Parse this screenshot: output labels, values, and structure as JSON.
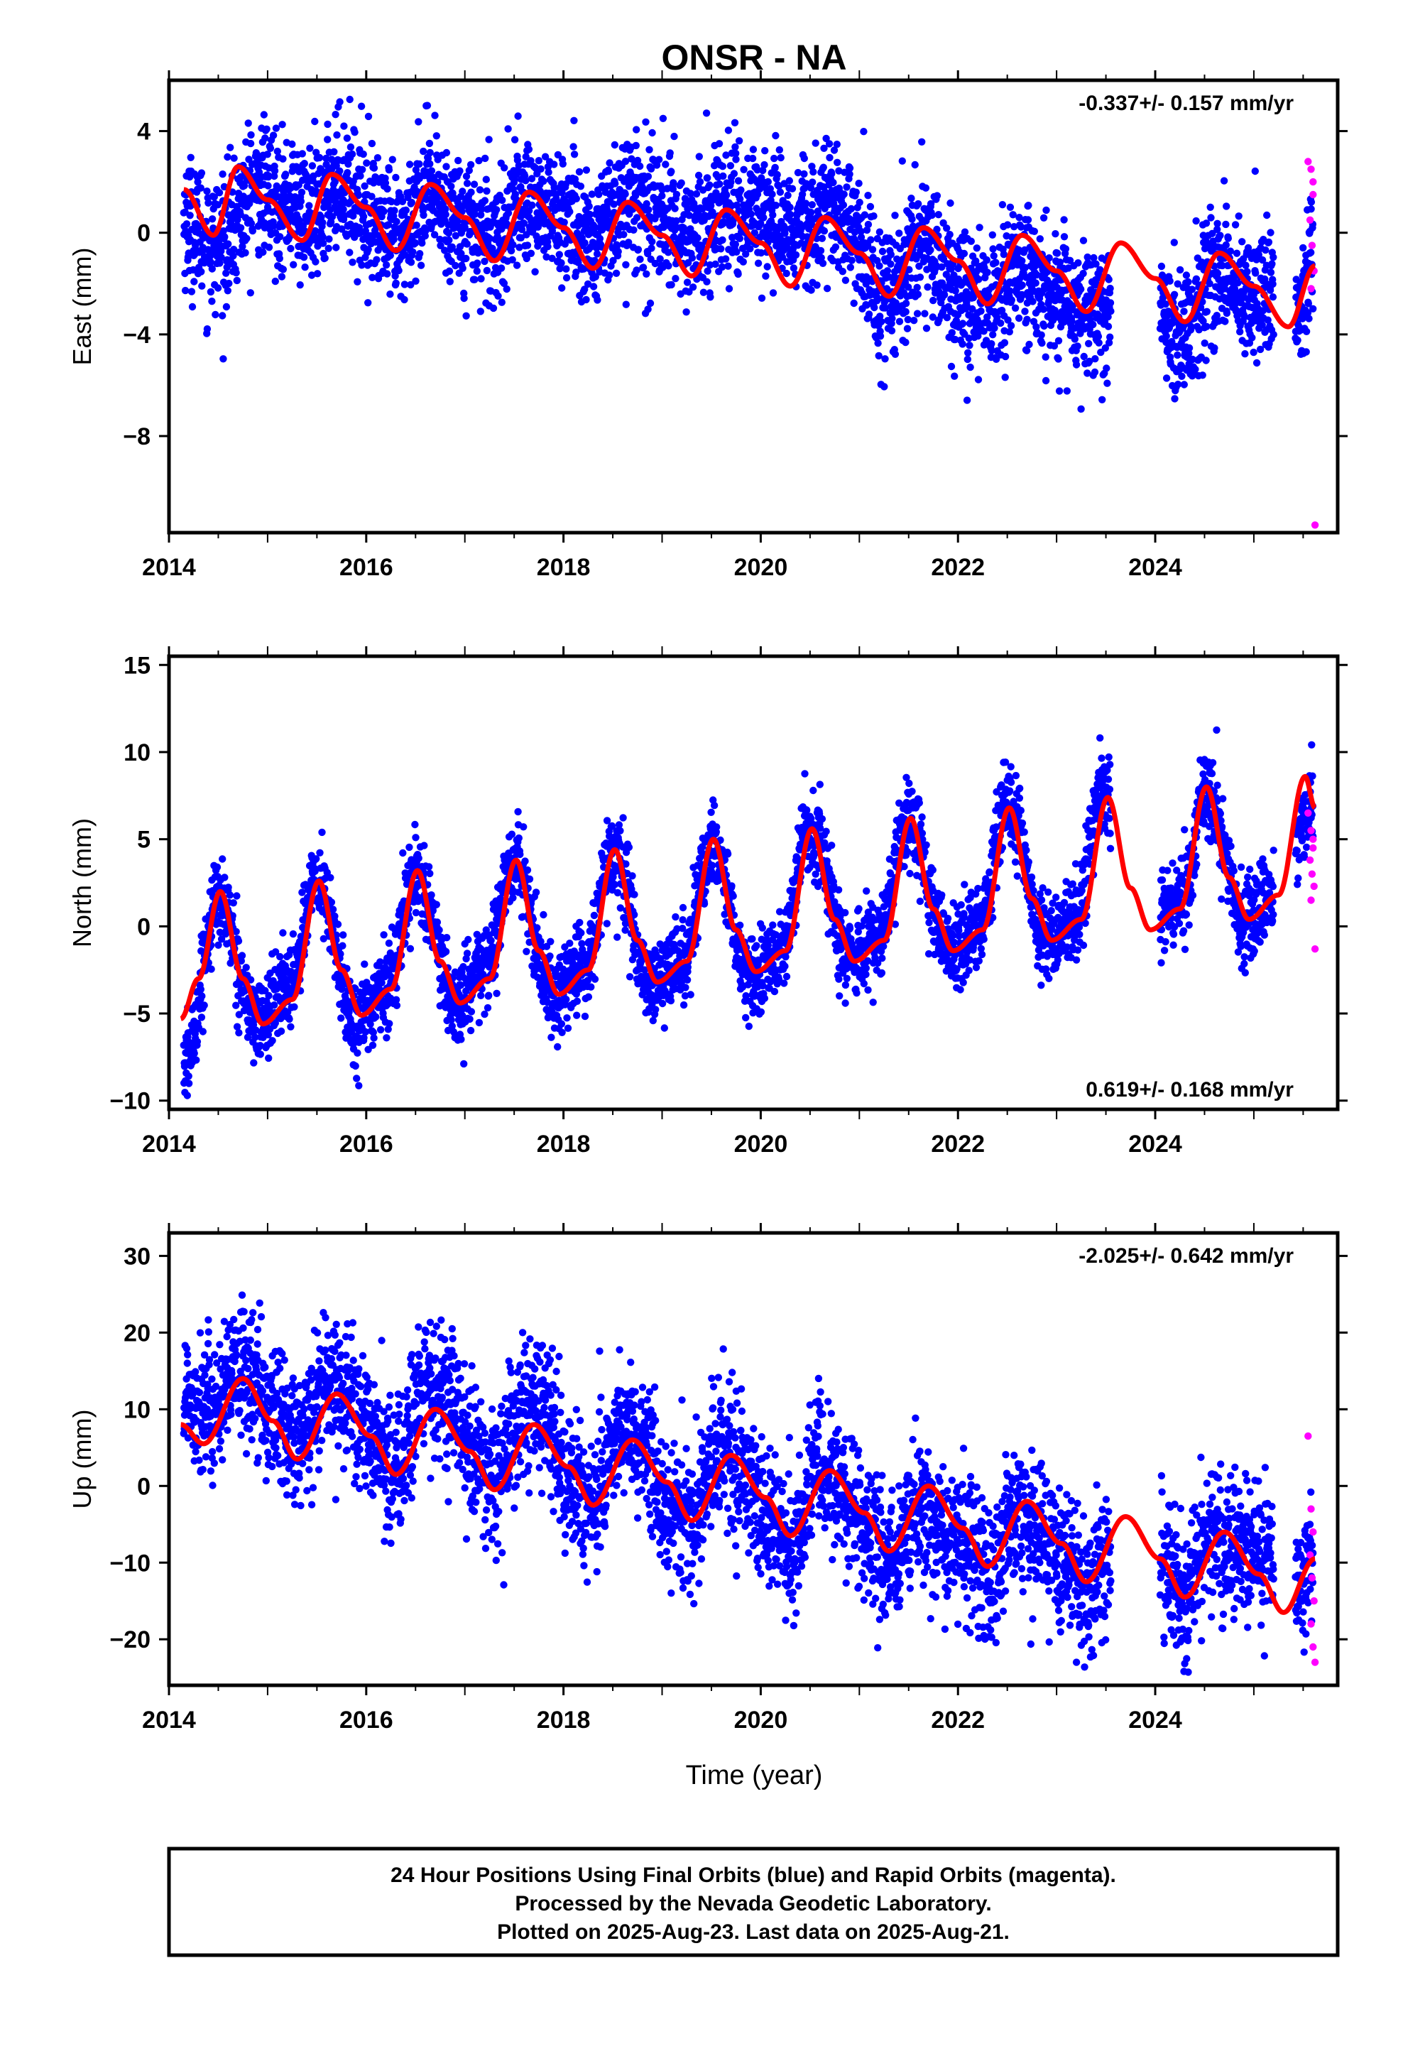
{
  "chart_data": [
    {
      "type": "scatter",
      "panel": "east",
      "title": "ONSR - NA",
      "xlabel": "",
      "ylabel": "East (mm)",
      "rate_text": "-0.337+/- 0.157 mm/yr",
      "xlim": [
        2014.0,
        2025.85
      ],
      "ylim": [
        -11.8,
        6.0
      ],
      "x_ticks": [
        2014,
        2016,
        2018,
        2020,
        2022,
        2024
      ],
      "y_ticks": [
        4,
        0,
        -4,
        -8
      ],
      "series": [
        {
          "name": "Final Orbits",
          "color": "#0000ff",
          "kind": "points",
          "spread": 1.3,
          "x": [
            2014.15,
            2014.5,
            2014.9,
            2015.2,
            2015.5,
            2015.7,
            2016.0,
            2016.3,
            2016.6,
            2017.0,
            2017.3,
            2017.6,
            2018.0,
            2018.3,
            2018.6,
            2019.0,
            2019.3,
            2019.6,
            2020.0,
            2020.3,
            2020.6,
            2020.9,
            2021.25,
            2021.6,
            2022.0,
            2022.3,
            2022.6,
            2022.9,
            2023.3,
            2023.45,
            2024.1,
            2024.3,
            2024.6,
            2024.9,
            2025.15,
            2025.45,
            2025.6
          ],
          "y": [
            0.5,
            -0.5,
            1.8,
            1.2,
            0.5,
            2.2,
            1.0,
            -0.5,
            1.5,
            0.5,
            -0.2,
            1.3,
            0.6,
            -0.5,
            1.3,
            0.7,
            -0.3,
            0.9,
            1.0,
            0.3,
            0.8,
            0.5,
            -2.8,
            -0.3,
            -2.2,
            -3.0,
            -1.2,
            -2.5,
            -3.0,
            -2.8,
            -3.5,
            -4.0,
            -1.5,
            -2.5,
            -2.5,
            -3.5,
            -1.0
          ]
        },
        {
          "name": "Rapid Orbits",
          "color": "#ff00ff",
          "kind": "points",
          "x": [
            2025.55,
            2025.58,
            2025.6,
            2025.57,
            2025.59,
            2025.61,
            2025.58,
            2025.6,
            2025.62
          ],
          "y": [
            2.8,
            2.5,
            1.5,
            0.5,
            -0.5,
            -1.5,
            -2.2,
            2.0,
            -11.5
          ]
        },
        {
          "name": "Model",
          "color": "#ff0000",
          "kind": "curve",
          "x": [
            2014.15,
            2014.45,
            2014.7,
            2015.0,
            2015.35,
            2015.65,
            2016.0,
            2016.3,
            2016.65,
            2017.0,
            2017.3,
            2017.65,
            2018.0,
            2018.3,
            2018.65,
            2019.0,
            2019.3,
            2019.65,
            2020.0,
            2020.3,
            2020.65,
            2021.0,
            2021.3,
            2021.65,
            2022.0,
            2022.3,
            2022.65,
            2023.0,
            2023.3,
            2023.65,
            2024.0,
            2024.3,
            2024.65,
            2025.0,
            2025.35,
            2025.62
          ],
          "y": [
            1.7,
            -0.1,
            2.6,
            1.3,
            -0.3,
            2.3,
            1.0,
            -0.7,
            1.9,
            0.6,
            -1.1,
            1.6,
            0.2,
            -1.4,
            1.2,
            -0.1,
            -1.7,
            0.9,
            -0.4,
            -2.1,
            0.6,
            -0.8,
            -2.5,
            0.2,
            -1.1,
            -2.8,
            -0.1,
            -1.5,
            -3.1,
            -0.4,
            -1.8,
            -3.5,
            -0.8,
            -2.1,
            -3.7,
            -1.3
          ]
        }
      ]
    },
    {
      "type": "scatter",
      "panel": "north",
      "title": "",
      "xlabel": "",
      "ylabel": "North (mm)",
      "rate_text": "0.619+/- 0.168 mm/yr",
      "xlim": [
        2014.0,
        2025.85
      ],
      "ylim": [
        -10.5,
        15.5
      ],
      "x_ticks": [
        2014,
        2016,
        2018,
        2020,
        2022,
        2024
      ],
      "y_ticks": [
        15,
        10,
        5,
        0,
        -5,
        -10
      ],
      "series": [
        {
          "name": "Final Orbits",
          "color": "#0000ff",
          "kind": "points",
          "spread": 1.2,
          "x": [
            2014.15,
            2014.5,
            2014.9,
            2015.2,
            2015.5,
            2015.9,
            2016.2,
            2016.5,
            2016.9,
            2017.2,
            2017.5,
            2017.9,
            2018.2,
            2018.5,
            2018.9,
            2019.2,
            2019.5,
            2019.9,
            2020.2,
            2020.5,
            2020.9,
            2021.2,
            2021.5,
            2021.9,
            2022.2,
            2022.5,
            2022.9,
            2023.2,
            2023.45,
            2024.1,
            2024.3,
            2024.5,
            2024.9,
            2025.15,
            2025.4,
            2025.6
          ],
          "y": [
            -8.0,
            1.5,
            -5.5,
            -3.5,
            2.5,
            -5.5,
            -3.5,
            3.0,
            -4.5,
            -2.5,
            3.5,
            -4.0,
            -2.5,
            4.0,
            -3.5,
            -2.0,
            4.5,
            -3.0,
            -1.5,
            6.0,
            -2.0,
            -0.5,
            6.0,
            -1.5,
            0.0,
            7.0,
            -1.0,
            0.5,
            7.5,
            1.0,
            2.0,
            8.0,
            0.5,
            1.5,
            5.0,
            7.0
          ]
        },
        {
          "name": "Rapid Orbits",
          "color": "#ff00ff",
          "kind": "points",
          "x": [
            2025.55,
            2025.58,
            2025.6,
            2025.57,
            2025.59,
            2025.61,
            2025.58,
            2025.6,
            2025.62
          ],
          "y": [
            6.5,
            5.5,
            4.5,
            3.8,
            3.0,
            2.3,
            1.5,
            5.0,
            -1.3
          ]
        },
        {
          "name": "Model",
          "color": "#ff0000",
          "kind": "curve",
          "x": [
            2014.12,
            2014.3,
            2014.52,
            2014.75,
            2014.95,
            2015.25,
            2015.52,
            2015.75,
            2015.95,
            2016.25,
            2016.52,
            2016.75,
            2016.95,
            2017.25,
            2017.52,
            2017.75,
            2017.95,
            2018.25,
            2018.52,
            2018.75,
            2018.95,
            2019.25,
            2019.52,
            2019.75,
            2019.95,
            2020.25,
            2020.52,
            2020.75,
            2020.95,
            2021.25,
            2021.52,
            2021.75,
            2021.95,
            2022.25,
            2022.52,
            2022.75,
            2022.95,
            2023.25,
            2023.52,
            2023.75,
            2023.95,
            2024.25,
            2024.52,
            2024.75,
            2024.95,
            2025.25,
            2025.52,
            2025.62
          ],
          "y": [
            -5.3,
            -3.0,
            2.0,
            -3.0,
            -5.6,
            -4.2,
            2.6,
            -2.5,
            -5.1,
            -3.6,
            3.2,
            -2.0,
            -4.4,
            -3.0,
            3.8,
            -1.4,
            -3.9,
            -2.5,
            4.4,
            -0.8,
            -3.2,
            -2.0,
            5.0,
            -0.2,
            -2.6,
            -1.4,
            5.6,
            0.4,
            -2.0,
            -0.8,
            6.2,
            1.0,
            -1.4,
            -0.2,
            6.8,
            1.6,
            -0.8,
            0.4,
            7.4,
            2.2,
            -0.2,
            1.0,
            8.0,
            2.8,
            0.4,
            1.8,
            8.6,
            6.8
          ]
        }
      ]
    },
    {
      "type": "scatter",
      "panel": "up",
      "title": "",
      "xlabel": "Time (year)",
      "ylabel": "Up (mm)",
      "rate_text": "-2.025+/- 0.642 mm/yr",
      "xlim": [
        2014.0,
        2025.85
      ],
      "ylim": [
        -26.0,
        33.0
      ],
      "x_ticks": [
        2014,
        2016,
        2018,
        2020,
        2022,
        2024
      ],
      "y_ticks": [
        30,
        20,
        10,
        0,
        -10,
        -20
      ],
      "series": [
        {
          "name": "Final Orbits",
          "color": "#0000ff",
          "kind": "points",
          "spread": 4.5,
          "x": [
            2014.15,
            2014.45,
            2014.75,
            2015.05,
            2015.3,
            2015.6,
            2015.8,
            2016.1,
            2016.3,
            2016.6,
            2016.8,
            2017.1,
            2017.3,
            2017.6,
            2017.8,
            2018.1,
            2018.3,
            2018.6,
            2018.8,
            2019.1,
            2019.3,
            2019.6,
            2019.8,
            2020.1,
            2020.3,
            2020.6,
            2020.8,
            2021.1,
            2021.3,
            2021.6,
            2021.8,
            2022.1,
            2022.3,
            2022.6,
            2022.8,
            2023.1,
            2023.3,
            2023.45,
            2024.1,
            2024.3,
            2024.6,
            2024.9,
            2025.15,
            2025.45,
            2025.6
          ],
          "y": [
            12.0,
            10.0,
            15.0,
            10.0,
            5.0,
            14.0,
            12.0,
            5.0,
            2.0,
            13.0,
            11.0,
            4.0,
            0.5,
            10.0,
            9.0,
            0.0,
            -2.0,
            8.0,
            5.0,
            -3.0,
            -4.0,
            5.0,
            2.0,
            -5.0,
            -8.0,
            3.0,
            0.0,
            -6.0,
            -10.0,
            -3.0,
            -6.0,
            -8.0,
            -12.0,
            -4.0,
            -6.0,
            -10.0,
            -14.0,
            -10.0,
            -11.0,
            -13.0,
            -6.0,
            -8.0,
            -9.0,
            -14.0,
            -9.0
          ]
        },
        {
          "name": "Rapid Orbits",
          "color": "#ff00ff",
          "kind": "points",
          "x": [
            2025.55,
            2025.58,
            2025.6,
            2025.57,
            2025.59,
            2025.61,
            2025.58,
            2025.6,
            2025.62
          ],
          "y": [
            6.5,
            -3.0,
            -6.0,
            -9.0,
            -12.0,
            -15.0,
            -18.0,
            -21.0,
            -23.0
          ]
        },
        {
          "name": "Model",
          "color": "#ff0000",
          "kind": "curve",
          "x": [
            2014.12,
            2014.35,
            2014.75,
            2015.05,
            2015.3,
            2015.7,
            2016.05,
            2016.3,
            2016.7,
            2017.05,
            2017.3,
            2017.7,
            2018.05,
            2018.3,
            2018.7,
            2019.05,
            2019.3,
            2019.7,
            2020.05,
            2020.3,
            2020.7,
            2021.05,
            2021.3,
            2021.7,
            2022.05,
            2022.3,
            2022.7,
            2023.05,
            2023.3,
            2023.7,
            2024.05,
            2024.3,
            2024.7,
            2025.05,
            2025.3,
            2025.62
          ],
          "y": [
            8.0,
            5.5,
            14.0,
            8.5,
            3.5,
            12.0,
            6.5,
            1.5,
            10.0,
            4.5,
            -0.5,
            8.0,
            2.5,
            -2.5,
            6.0,
            0.5,
            -4.5,
            4.0,
            -1.5,
            -6.5,
            2.0,
            -3.5,
            -8.5,
            0.0,
            -5.5,
            -10.5,
            -2.0,
            -7.5,
            -12.5,
            -4.0,
            -9.5,
            -14.5,
            -6.0,
            -11.5,
            -16.5,
            -9.5
          ]
        }
      ]
    }
  ],
  "footer": {
    "line1": "24 Hour Positions Using Final Orbits (blue) and Rapid Orbits (magenta).",
    "line2": "Processed by the Nevada Geodetic Laboratory.",
    "line3": "Plotted on 2025-Aug-23. Last data on 2025-Aug-21."
  },
  "colors": {
    "final": "#0000ff",
    "rapid": "#ff00ff",
    "model": "#ff0000",
    "frame": "#000000"
  }
}
